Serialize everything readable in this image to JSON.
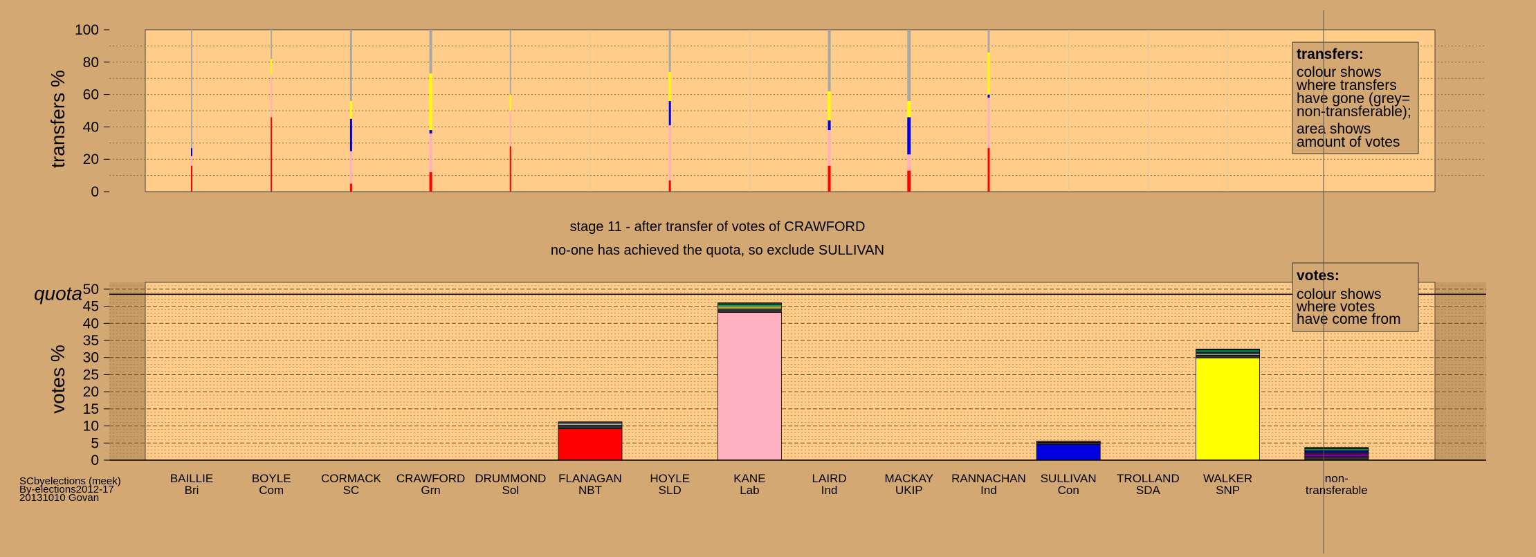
{
  "stage_text": "stage 11 - after transfer of votes of CRAWFORD",
  "decision_text": "no-one has achieved the quota, so exclude SULLIVAN",
  "quota_label": "quota",
  "source": [
    "SCbyelections (meek)",
    "By-elections2012-17",
    "20131010 Govan"
  ],
  "legend_transfers": {
    "title": "transfers:",
    "lines1": [
      "colour shows",
      "where transfers",
      "have gone (grey=",
      "non-transferable);"
    ],
    "lines2": [
      "area shows",
      "amount of votes"
    ]
  },
  "legend_votes": {
    "title": "votes:",
    "lines": [
      "colour shows",
      "where votes",
      "have come from"
    ]
  },
  "colors": {
    "background": "#d4a872",
    "plot_bg": "#ffcc8a",
    "red": "#ff0000",
    "pink": "#ffb0c0",
    "blue": "#0000e0",
    "yellow": "#ffff00",
    "grey": "#a8a8a8",
    "dark": "#303030",
    "green": "#00b050",
    "purple": "#8000a0",
    "brown": "#8b4513"
  },
  "chart_data": [
    {
      "type": "bar",
      "title": "",
      "ylabel": "transfers %",
      "ylim": [
        0,
        100
      ],
      "yticks": [
        0,
        20,
        40,
        60,
        80,
        100
      ],
      "categories": [
        "BAILLIE",
        "BOYLE",
        "CORMACK",
        "CRAWFORD",
        "DRUMMOND",
        "FLANAGAN",
        "HOYLE",
        "KANE",
        "LAIRD",
        "MACKAY",
        "RANNACHAN",
        "SULLIVAN",
        "TROLLAND",
        "WALKER"
      ],
      "stack_order": [
        "red",
        "pink",
        "blue",
        "yellow",
        "grey"
      ],
      "transfers": [
        {
          "red": 16,
          "pink": 6,
          "blue": 5,
          "yellow": 0,
          "grey": 73,
          "width": 2
        },
        {
          "red": 46,
          "pink": 26,
          "blue": 0,
          "yellow": 10,
          "grey": 18,
          "width": 2
        },
        {
          "red": 5,
          "pink": 20,
          "blue": 20,
          "yellow": 11,
          "grey": 44,
          "width": 3
        },
        {
          "red": 12,
          "pink": 24,
          "blue": 2,
          "yellow": 35,
          "grey": 27,
          "width": 4
        },
        {
          "red": 28,
          "pink": 22,
          "blue": 0,
          "yellow": 10,
          "grey": 40,
          "width": 2
        },
        {
          "red": 0,
          "pink": 0,
          "blue": 0,
          "yellow": 0,
          "grey": 0,
          "width": 0
        },
        {
          "red": 7,
          "pink": 34,
          "blue": 15,
          "yellow": 18,
          "grey": 26,
          "width": 3
        },
        {
          "red": 0,
          "pink": 0,
          "blue": 0,
          "yellow": 0,
          "grey": 0,
          "width": 0
        },
        {
          "red": 16,
          "pink": 22,
          "blue": 6,
          "yellow": 18,
          "grey": 38,
          "width": 4
        },
        {
          "red": 13,
          "pink": 10,
          "blue": 23,
          "yellow": 10,
          "grey": 44,
          "width": 5
        },
        {
          "red": 27,
          "pink": 31,
          "blue": 2,
          "yellow": 26,
          "grey": 14,
          "width": 3
        },
        {
          "red": 0,
          "pink": 0,
          "blue": 0,
          "yellow": 0,
          "grey": 0,
          "width": 0
        },
        {
          "red": 0,
          "pink": 0,
          "blue": 0,
          "yellow": 0,
          "grey": 0,
          "width": 0
        },
        {
          "red": 0,
          "pink": 0,
          "blue": 0,
          "yellow": 0,
          "grey": 0,
          "width": 0
        }
      ],
      "grid": true
    },
    {
      "type": "bar",
      "title": "",
      "ylabel": "votes %",
      "ylim": [
        0,
        52
      ],
      "yticks": [
        0,
        5,
        10,
        15,
        20,
        25,
        30,
        35,
        40,
        45,
        50
      ],
      "quota": 48.5,
      "categories": [
        "BAILLIE",
        "BOYLE",
        "CORMACK",
        "CRAWFORD",
        "DRUMMOND",
        "FLANAGAN",
        "HOYLE",
        "KANE",
        "LAIRD",
        "MACKAY",
        "RANNACHAN",
        "SULLIVAN",
        "TROLLAND",
        "WALKER",
        "non-"
      ],
      "parties": [
        "Bri",
        "Com",
        "SC",
        "Grn",
        "Sol",
        "NBT",
        "SLD",
        "Lab",
        "Ind",
        "UKIP",
        "Ind",
        "Con",
        "SDA",
        "SNP",
        "transferable"
      ],
      "votes": [
        [],
        [],
        [],
        [],
        [],
        [
          {
            "color": "red",
            "value": 9.2
          },
          {
            "color": "dark",
            "value": 1.0
          },
          {
            "color": "grey",
            "value": 0.6
          },
          {
            "color": "dark",
            "value": 0.4
          }
        ],
        [],
        [
          {
            "color": "pink",
            "value": 43.2
          },
          {
            "color": "dark",
            "value": 0.8
          },
          {
            "color": "grey",
            "value": 0.5
          },
          {
            "color": "yellow",
            "value": 0.5
          },
          {
            "color": "green",
            "value": 0.5
          },
          {
            "color": "dark",
            "value": 0.5
          }
        ],
        [],
        [],
        [],
        [
          {
            "color": "blue",
            "value": 4.6
          },
          {
            "color": "dark",
            "value": 0.6
          },
          {
            "color": "brown",
            "value": 0.4
          }
        ],
        [],
        [
          {
            "color": "yellow",
            "value": 29.9
          },
          {
            "color": "dark",
            "value": 0.8
          },
          {
            "color": "grey",
            "value": 0.5
          },
          {
            "color": "dark",
            "value": 0.4
          },
          {
            "color": "green",
            "value": 0.6
          },
          {
            "color": "dark",
            "value": 0.3
          }
        ],
        [
          {
            "color": "dark",
            "value": 1.0
          },
          {
            "color": "purple",
            "value": 0.8
          },
          {
            "color": "dark",
            "value": 0.5
          },
          {
            "color": "blue",
            "value": 0.5
          },
          {
            "color": "green",
            "value": 0.5
          },
          {
            "color": "dark",
            "value": 0.4
          }
        ]
      ],
      "grid": true
    }
  ]
}
